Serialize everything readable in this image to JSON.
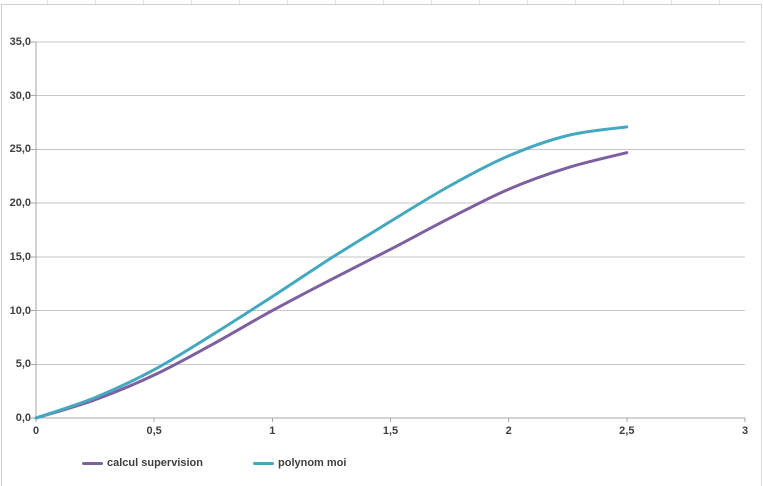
{
  "chart": {
    "background": "#FFFFFF",
    "frame_border_color": "#CFCFCF",
    "gridline_color": "#C6C6C6",
    "axis_color": "#A6A6A6",
    "label_color": "#3F3F3F"
  },
  "chart_data": {
    "type": "line",
    "title": "",
    "xlabel": "",
    "ylabel": "",
    "xlim": [
      0,
      3
    ],
    "ylim": [
      0,
      35
    ],
    "grid": "horizontal",
    "legend_position": "bottom",
    "x": [
      0,
      0.25,
      0.5,
      0.75,
      1.0,
      1.25,
      1.5,
      1.75,
      2.0,
      2.25,
      2.5
    ],
    "series": [
      {
        "name": "calcul supervision",
        "color": "#7D60A0",
        "values": [
          0,
          1.7,
          4.0,
          6.9,
          10.0,
          12.9,
          15.7,
          18.6,
          21.3,
          23.3,
          24.7
        ]
      },
      {
        "name": "polynom moi",
        "color": "#44A8C0",
        "values": [
          0,
          1.9,
          4.5,
          7.8,
          11.3,
          14.9,
          18.3,
          21.6,
          24.4,
          26.3,
          27.1
        ]
      }
    ],
    "y_tick_values": [
      0,
      5,
      10,
      15,
      20,
      25,
      30,
      35
    ],
    "y_tick_labels": [
      "0,0",
      "5,0",
      "10,0",
      "15,0",
      "20,0",
      "25,0",
      "30,0",
      "35,0"
    ],
    "x_tick_values": [
      0,
      0.5,
      1,
      1.5,
      2,
      2.5,
      3
    ],
    "x_tick_labels": [
      "0",
      "0,5",
      "1",
      "1,5",
      "2",
      "2,5",
      "3"
    ]
  }
}
